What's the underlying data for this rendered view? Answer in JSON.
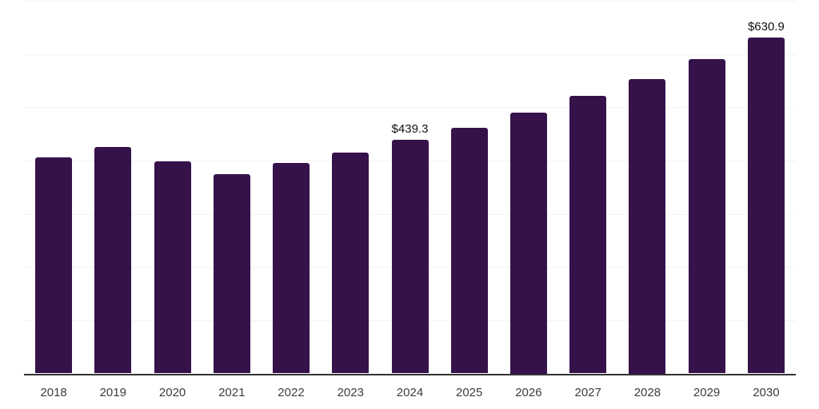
{
  "chart_data": {
    "type": "bar",
    "title": "",
    "xlabel": "",
    "ylabel": "",
    "categories": [
      "2018",
      "2019",
      "2020",
      "2021",
      "2022",
      "2023",
      "2024",
      "2025",
      "2026",
      "2027",
      "2028",
      "2029",
      "2030"
    ],
    "values": [
      406,
      426,
      398,
      375,
      396,
      415,
      439.3,
      462,
      490,
      522,
      553,
      591,
      630.9
    ],
    "annotations": [
      {
        "index": 6,
        "text": "$439.3"
      },
      {
        "index": 12,
        "text": "$630.9"
      }
    ],
    "ylim": [
      0,
      700
    ],
    "grid_interval": 100,
    "grid_on": true,
    "legend_position": "none",
    "colors": {
      "bar": "#36124b",
      "gridline": "#f2f2f3",
      "axis_line": "#333333",
      "tick_label": "#3c3c3c",
      "data_label": "#111111",
      "background": "#ffffff"
    }
  }
}
